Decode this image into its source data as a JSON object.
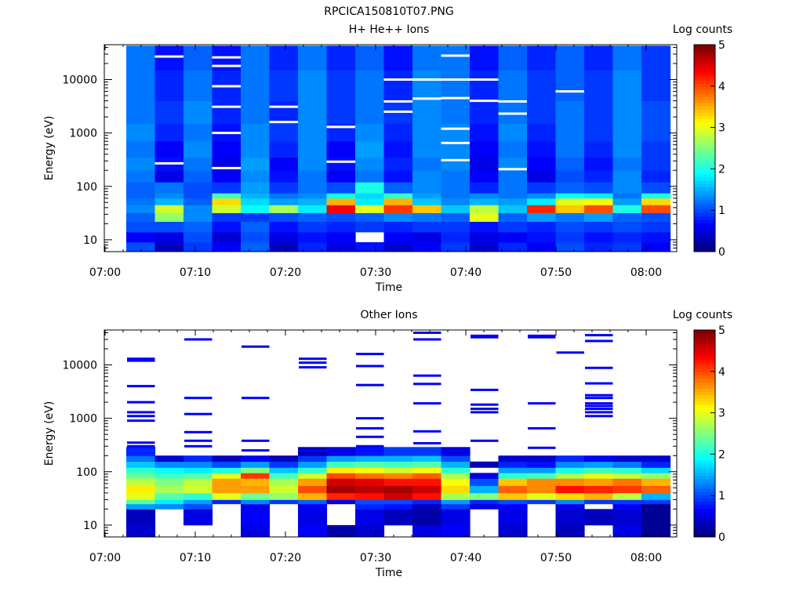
{
  "figure_title": "RPCICA150810T07.PNG",
  "chart_data": [
    {
      "type": "heatmap",
      "title": "H+ He++ Ions",
      "xlabel": "Time",
      "ylabel": "Energy (eV)",
      "colorbar_label": "Log counts",
      "colorbar_ticks": [
        "0",
        "1",
        "2",
        "3",
        "4",
        "5"
      ],
      "clim": [
        0,
        5
      ],
      "x_ticks": [
        "07:00",
        "07:10",
        "07:20",
        "07:30",
        "07:40",
        "07:50",
        "08:00"
      ],
      "xlim": [
        "07:00",
        "08:00"
      ],
      "y_scale": "log",
      "y_ticks": [
        "10",
        "100",
        "1000",
        "10000"
      ],
      "ylim": [
        6,
        45000
      ],
      "time_columns": [
        "07:03",
        "07:06",
        "07:09",
        "07:12",
        "07:15",
        "07:18",
        "07:21",
        "07:24",
        "07:27",
        "07:30",
        "07:33",
        "07:36",
        "07:39",
        "07:42",
        "07:45",
        "07:48",
        "07:51",
        "07:54",
        "07:57"
      ],
      "cells": [
        {
          "y0": 6,
          "y1": 9,
          "levels": [
            1.0,
            0.3,
            0.9,
            0.6,
            1.1,
            0.3,
            0.8,
            0.5,
            0.7,
            0.4,
            0.6,
            0.9,
            0.4,
            0.8,
            0.6,
            1.0,
            0.8,
            0.9,
            0.6
          ]
        },
        {
          "y0": 9,
          "y1": 14,
          "levels": [
            0.6,
            0.5,
            1.0,
            0.4,
            1.0,
            0.5,
            0.7,
            0.6,
            null,
            0.6,
            0.5,
            0.8,
            0.5,
            0.6,
            0.7,
            0.9,
            0.7,
            0.8,
            0.7
          ]
        },
        {
          "y0": 14,
          "y1": 22,
          "levels": [
            1.0,
            1.0,
            1.1,
            0.7,
            1.1,
            0.7,
            0.9,
            0.8,
            0.9,
            0.8,
            0.9,
            0.9,
            0.7,
            0.9,
            0.8,
            1.0,
            0.9,
            1.0,
            0.9
          ]
        },
        {
          "y0": 22,
          "y1": 32,
          "levels": [
            1.1,
            2.6,
            1.3,
            0.9,
            0.9,
            1.0,
            1.1,
            1.0,
            1.1,
            1.3,
            1.2,
            1.1,
            3.0,
            1.1,
            1.4,
            1.2,
            1.4,
            1.1,
            1.0
          ]
        },
        {
          "y0": 32,
          "y1": 45,
          "levels": [
            1.3,
            2.9,
            1.3,
            2.9,
            1.9,
            2.7,
            1.8,
            4.4,
            3.0,
            4.1,
            3.4,
            1.6,
            2.8,
            1.6,
            4.2,
            3.4,
            4.0,
            2.0,
            4.0
          ]
        },
        {
          "y0": 45,
          "y1": 60,
          "levels": [
            1.2,
            1.5,
            1.1,
            3.3,
            1.7,
            1.4,
            1.5,
            3.5,
            1.8,
            3.5,
            1.6,
            1.3,
            1.5,
            1.4,
            1.8,
            3.0,
            3.1,
            1.4,
            3.3
          ]
        },
        {
          "y0": 60,
          "y1": 75,
          "levels": [
            1.1,
            1.3,
            1.0,
            2.2,
            1.5,
            1.2,
            1.3,
            1.9,
            1.7,
            2.1,
            1.4,
            1.2,
            1.3,
            1.2,
            1.3,
            1.9,
            1.8,
            1.2,
            2.0
          ]
        },
        {
          "y0": 75,
          "y1": 120,
          "levels": [
            1.1,
            1.2,
            1.0,
            0.9,
            1.4,
            0.9,
            1.2,
            1.0,
            2.0,
            1.1,
            1.3,
            1.2,
            0.8,
            1.2,
            0.9,
            1.1,
            1.0,
            1.3,
            1.0
          ]
        },
        {
          "y0": 120,
          "y1": 200,
          "levels": [
            1.2,
            0.5,
            1.1,
            0.6,
            1.3,
            0.7,
            1.2,
            0.6,
            1.2,
            0.7,
            1.3,
            1.2,
            0.6,
            1.2,
            0.5,
            1.0,
            0.8,
            1.3,
            0.8
          ]
        },
        {
          "y0": 200,
          "y1": 350,
          "levels": [
            1.3,
            0.7,
            1.2,
            0.5,
            1.4,
            0.6,
            1.3,
            0.7,
            1.3,
            0.8,
            1.2,
            1.3,
            0.5,
            1.3,
            0.6,
            1.1,
            0.7,
            1.2,
            0.9
          ]
        },
        {
          "y0": 350,
          "y1": 700,
          "levels": [
            1.2,
            0.6,
            1.3,
            0.6,
            1.3,
            0.8,
            1.3,
            0.6,
            1.4,
            0.7,
            1.3,
            1.3,
            0.6,
            1.2,
            0.7,
            1.2,
            0.8,
            1.3,
            0.9
          ]
        },
        {
          "y0": 700,
          "y1": 1500,
          "levels": [
            1.3,
            0.8,
            1.2,
            0.7,
            1.3,
            0.9,
            1.3,
            0.8,
            1.3,
            0.8,
            1.3,
            1.3,
            0.7,
            1.3,
            0.8,
            1.2,
            0.9,
            1.3,
            1.0
          ]
        },
        {
          "y0": 1500,
          "y1": 4000,
          "levels": [
            1.2,
            0.9,
            1.3,
            0.8,
            1.2,
            0.8,
            1.3,
            0.9,
            1.2,
            0.9,
            1.3,
            1.2,
            0.8,
            1.2,
            0.9,
            1.2,
            0.9,
            1.3,
            1.0
          ]
        },
        {
          "y0": 4000,
          "y1": 15000,
          "levels": [
            1.2,
            0.8,
            1.2,
            0.8,
            1.2,
            0.9,
            1.3,
            0.9,
            1.2,
            0.8,
            1.3,
            1.2,
            0.8,
            1.2,
            0.9,
            1.1,
            0.9,
            1.3,
            0.9
          ]
        },
        {
          "y0": 15000,
          "y1": 43000,
          "levels": [
            1.2,
            0.7,
            1.1,
            0.7,
            1.2,
            0.8,
            1.2,
            0.8,
            1.1,
            0.7,
            1.2,
            1.2,
            0.7,
            1.1,
            0.8,
            1.1,
            0.8,
            1.2,
            0.9
          ]
        }
      ],
      "gaps": [
        {
          "col": 1,
          "e": [
            27000,
            270
          ]
        },
        {
          "col": 3,
          "e": [
            26000,
            18000,
            7500,
            3100,
            1000,
            220
          ]
        },
        {
          "col": 5,
          "e": [
            3100,
            1600
          ]
        },
        {
          "col": 7,
          "e": [
            1300,
            290
          ]
        },
        {
          "col": 9,
          "e": [
            10000,
            3900,
            2500
          ]
        },
        {
          "col": 10,
          "e": [
            10000,
            4400
          ]
        },
        {
          "col": 11,
          "e": [
            28000,
            10000,
            4500,
            1200,
            650,
            310
          ]
        },
        {
          "col": 12,
          "e": [
            10000,
            4000
          ]
        },
        {
          "col": 13,
          "e": [
            3900,
            2300,
            210
          ]
        },
        {
          "col": 15,
          "e": [
            6000
          ]
        }
      ]
    },
    {
      "type": "heatmap",
      "title": "Other Ions",
      "xlabel": "Time",
      "ylabel": "Energy (eV)",
      "colorbar_label": "Log counts",
      "colorbar_ticks": [
        "0",
        "1",
        "2",
        "3",
        "4",
        "5"
      ],
      "clim": [
        0,
        5
      ],
      "x_ticks": [
        "07:00",
        "07:10",
        "07:20",
        "07:30",
        "07:40",
        "07:50",
        "08:00"
      ],
      "xlim": [
        "07:00",
        "08:00"
      ],
      "y_scale": "log",
      "y_ticks": [
        "10",
        "100",
        "1000",
        "10000"
      ],
      "ylim": [
        6,
        45000
      ],
      "time_columns": [
        "07:03",
        "07:06",
        "07:09",
        "07:12",
        "07:15",
        "07:18",
        "07:21",
        "07:24",
        "07:27",
        "07:30",
        "07:33",
        "07:36",
        "07:39",
        "07:42",
        "07:45",
        "07:48",
        "07:51",
        "07:54",
        "07:57"
      ],
      "cells": [
        {
          "y0": 6,
          "y1": 10,
          "levels": [
            0.4,
            null,
            null,
            null,
            0.5,
            null,
            0.6,
            0.2,
            0.4,
            null,
            0.5,
            0.6,
            null,
            0.4,
            null,
            0.3,
            null,
            0.5,
            0.1
          ]
        },
        {
          "y0": 10,
          "y1": 20,
          "levels": [
            0.3,
            null,
            0.5,
            null,
            0.6,
            null,
            0.5,
            null,
            0.5,
            0.3,
            0.2,
            0.5,
            null,
            0.5,
            null,
            0.4,
            0.3,
            0.4,
            0.1
          ]
        },
        {
          "y0": 20,
          "y1": 25,
          "levels": [
            1.4,
            1.3,
            1.0,
            null,
            0.6,
            null,
            0.6,
            null,
            0.8,
            0.7,
            0.3,
            0.9,
            0.5,
            0.6,
            null,
            0.5,
            null,
            0.6,
            0.1
          ]
        },
        {
          "y0": 25,
          "y1": 30,
          "levels": [
            2.3,
            1.8,
            1.4,
            0.8,
            1.3,
            0.9,
            1.1,
            0.5,
            1.0,
            1.0,
            0.8,
            1.4,
            0.8,
            1.0,
            0.9,
            1.3,
            0.9,
            0.9,
            0.9
          ]
        },
        {
          "y0": 30,
          "y1": 40,
          "levels": [
            3.0,
            2.3,
            2.1,
            3.0,
            2.4,
            2.6,
            3.5,
            4.2,
            4.3,
            4.6,
            4.3,
            2.7,
            2.5,
            3.4,
            3.0,
            3.3,
            3.5,
            2.8,
            1.5
          ]
        },
        {
          "y0": 40,
          "y1": 55,
          "levels": [
            3.2,
            2.7,
            2.9,
            3.6,
            3.6,
            2.9,
            4.0,
            4.8,
            4.7,
            4.8,
            4.6,
            3.3,
            1.5,
            3.9,
            3.7,
            4.3,
            4.2,
            4.1,
            3.9
          ]
        },
        {
          "y0": 55,
          "y1": 75,
          "levels": [
            2.8,
            2.5,
            2.8,
            3.6,
            3.5,
            2.7,
            3.6,
            4.6,
            4.5,
            4.3,
            4.3,
            3.1,
            1.0,
            3.4,
            3.7,
            3.7,
            3.6,
            3.8,
            3.5
          ]
        },
        {
          "y0": 75,
          "y1": 95,
          "levels": [
            2.4,
            2.2,
            2.3,
            3.0,
            4.1,
            2.2,
            2.9,
            4.0,
            3.8,
            3.7,
            3.9,
            2.7,
            0.5,
            2.1,
            2.2,
            2.7,
            3.0,
            2.8,
            2.6
          ]
        },
        {
          "y0": 95,
          "y1": 120,
          "levels": [
            2.1,
            1.9,
            1.8,
            2.0,
            2.5,
            1.6,
            2.1,
            3.2,
            3.1,
            2.9,
            3.1,
            2.1,
            null,
            1.4,
            1.4,
            2.0,
            2.2,
            2.1,
            1.7
          ]
        },
        {
          "y0": 120,
          "y1": 155,
          "levels": [
            1.6,
            1.3,
            1.3,
            1.0,
            1.4,
            0.9,
            1.4,
            2.2,
            2.3,
            2.2,
            2.3,
            1.5,
            0.3,
            0.8,
            0.7,
            1.3,
            1.4,
            1.2,
            0.8
          ]
        },
        {
          "y0": 155,
          "y1": 200,
          "levels": [
            1.2,
            0.4,
            0.8,
            0.3,
            0.6,
            0.3,
            0.9,
            1.4,
            1.5,
            1.5,
            1.6,
            1.0,
            null,
            0.4,
            0.4,
            0.8,
            0.6,
            0.4,
            0.4
          ]
        },
        {
          "y0": 200,
          "y1": 290,
          "levels": [
            0.8,
            null,
            null,
            null,
            null,
            null,
            0.3,
            0.5,
            0.7,
            0.9,
            0.9,
            0.5,
            null,
            null,
            null,
            null,
            null,
            null,
            null
          ]
        }
      ],
      "lines": [
        {
          "col": 0,
          "e": [
            13000,
            12000,
            4000,
            2000,
            1300,
            1100,
            900,
            350,
            300
          ]
        },
        {
          "col": 2,
          "e": [
            30000,
            2400,
            1200,
            550,
            380,
            300
          ]
        },
        {
          "col": 4,
          "e": [
            22000,
            2400,
            380,
            250
          ]
        },
        {
          "col": 6,
          "e": [
            13000,
            11000,
            9000,
            250
          ]
        },
        {
          "col": 8,
          "e": [
            16000,
            9500,
            4200,
            1000,
            650,
            450,
            300
          ]
        },
        {
          "col": 10,
          "e": [
            40000,
            30000,
            6300,
            4400,
            1900,
            570,
            340
          ]
        },
        {
          "col": 12,
          "e": [
            35000,
            33000,
            3400,
            1800,
            1500,
            1300,
            380
          ]
        },
        {
          "col": 14,
          "e": [
            35000,
            33000,
            1900,
            650,
            280
          ]
        },
        {
          "col": 15,
          "e": [
            17000
          ]
        },
        {
          "col": 16,
          "e": [
            36000,
            28000,
            8800,
            4500,
            2700,
            2400,
            1900,
            1700,
            1500,
            1300,
            1100
          ]
        }
      ]
    }
  ]
}
